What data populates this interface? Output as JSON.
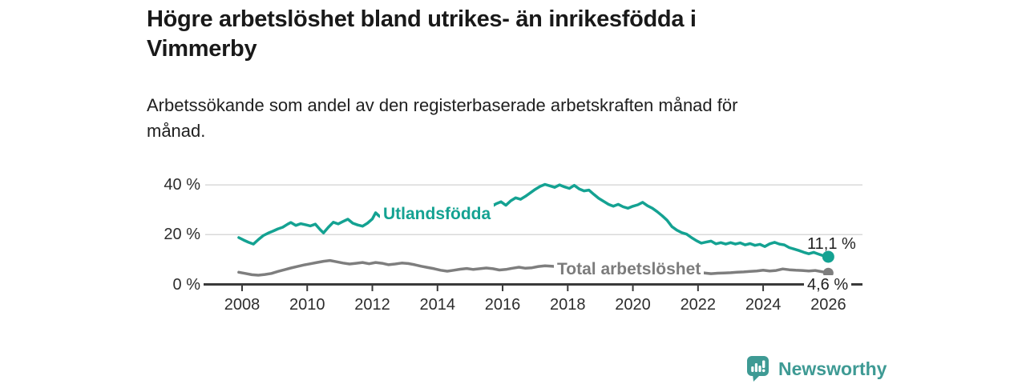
{
  "header": {
    "title_lines": [
      "Högre arbetslöshet bland utrikes- än inrikesfödda i",
      "Vimmerby"
    ],
    "subtitle_lines": [
      "Arbetssökande som andel av den registerbaserade arbetskraften månad för",
      "månad."
    ]
  },
  "footer": {
    "brand": "Newsworthy",
    "logo_icon": "bar-chart-speech-bubble-icon",
    "brand_color": "#3e9a94"
  },
  "colors": {
    "background": "#ffffff",
    "axis": "#3a3a3a",
    "grid": "#d9d9d9",
    "text": "#2d2d2d"
  },
  "chart_data": {
    "type": "line",
    "title": "Högre arbetslöshet bland utrikes- än inrikesfödda i Vimmerby",
    "subtitle": "Arbetssökande som andel av den registerbaserade arbetskraften månad för månad.",
    "xlabel": "",
    "ylabel": "",
    "xlim": [
      2007.8,
      2026.6
    ],
    "ylim": [
      0,
      45
    ],
    "grid": true,
    "legend_position": "inline-labels",
    "x_axis": {
      "ticks": [
        "2008",
        "2010",
        "2012",
        "2014",
        "2016",
        "2018",
        "2020",
        "2022",
        "2024",
        "2026"
      ]
    },
    "y_axis": {
      "ticks": [
        {
          "label": "0 %",
          "value": 0
        },
        {
          "label": "20 %",
          "value": 20
        },
        {
          "label": "40 %",
          "value": 40
        }
      ]
    },
    "series": [
      {
        "name": "Utlandsfödda",
        "color": "#14a292",
        "end_label": "11,1 %",
        "end_value": 11.1,
        "points": [
          [
            2007.9,
            18.8
          ],
          [
            2008.05,
            17.8
          ],
          [
            2008.2,
            16.9
          ],
          [
            2008.35,
            16.2
          ],
          [
            2008.5,
            18.0
          ],
          [
            2008.65,
            19.6
          ],
          [
            2008.8,
            20.6
          ],
          [
            2008.95,
            21.4
          ],
          [
            2009.1,
            22.3
          ],
          [
            2009.25,
            23.0
          ],
          [
            2009.4,
            24.2
          ],
          [
            2009.5,
            24.9
          ],
          [
            2009.65,
            23.7
          ],
          [
            2009.8,
            24.4
          ],
          [
            2009.95,
            24.0
          ],
          [
            2010.1,
            23.5
          ],
          [
            2010.25,
            24.2
          ],
          [
            2010.4,
            22.0
          ],
          [
            2010.5,
            20.7
          ],
          [
            2010.65,
            23.0
          ],
          [
            2010.8,
            25.0
          ],
          [
            2010.95,
            24.3
          ],
          [
            2011.1,
            25.3
          ],
          [
            2011.25,
            26.2
          ],
          [
            2011.4,
            24.6
          ],
          [
            2011.55,
            23.9
          ],
          [
            2011.7,
            23.4
          ],
          [
            2011.85,
            24.6
          ],
          [
            2012.0,
            26.3
          ],
          [
            2012.1,
            28.8
          ],
          [
            2012.2,
            27.6
          ],
          [
            2012.35,
            26.4
          ],
          [
            2012.5,
            25.4
          ],
          [
            2012.65,
            26.2
          ],
          [
            2012.8,
            27.0
          ],
          [
            2013.0,
            26.2
          ],
          [
            2013.2,
            26.8
          ],
          [
            2013.4,
            26.2
          ],
          [
            2013.6,
            27.2
          ],
          [
            2013.8,
            26.6
          ],
          [
            2014.0,
            27.2
          ],
          [
            2014.2,
            26.4
          ],
          [
            2014.4,
            27.0
          ],
          [
            2014.6,
            27.8
          ],
          [
            2014.8,
            27.2
          ],
          [
            2015.0,
            28.2
          ],
          [
            2015.2,
            28.8
          ],
          [
            2015.4,
            29.6
          ],
          [
            2015.6,
            30.8
          ],
          [
            2015.8,
            32.4
          ],
          [
            2015.95,
            33.2
          ],
          [
            2016.1,
            31.8
          ],
          [
            2016.25,
            33.6
          ],
          [
            2016.4,
            34.8
          ],
          [
            2016.55,
            34.2
          ],
          [
            2016.7,
            35.4
          ],
          [
            2016.85,
            36.8
          ],
          [
            2017.0,
            38.2
          ],
          [
            2017.15,
            39.4
          ],
          [
            2017.3,
            40.2
          ],
          [
            2017.45,
            39.6
          ],
          [
            2017.6,
            39.0
          ],
          [
            2017.75,
            40.0
          ],
          [
            2017.9,
            39.2
          ],
          [
            2018.05,
            38.6
          ],
          [
            2018.2,
            39.8
          ],
          [
            2018.35,
            38.4
          ],
          [
            2018.5,
            37.6
          ],
          [
            2018.65,
            37.9
          ],
          [
            2018.8,
            36.2
          ],
          [
            2018.95,
            34.6
          ],
          [
            2019.1,
            33.4
          ],
          [
            2019.25,
            32.2
          ],
          [
            2019.4,
            31.4
          ],
          [
            2019.55,
            32.2
          ],
          [
            2019.7,
            31.2
          ],
          [
            2019.85,
            30.6
          ],
          [
            2020.0,
            31.4
          ],
          [
            2020.15,
            32.0
          ],
          [
            2020.3,
            33.0
          ],
          [
            2020.45,
            31.6
          ],
          [
            2020.6,
            30.6
          ],
          [
            2020.75,
            29.2
          ],
          [
            2020.9,
            27.6
          ],
          [
            2021.05,
            25.8
          ],
          [
            2021.2,
            23.2
          ],
          [
            2021.35,
            21.8
          ],
          [
            2021.5,
            20.8
          ],
          [
            2021.65,
            20.2
          ],
          [
            2021.8,
            18.8
          ],
          [
            2021.95,
            17.6
          ],
          [
            2022.1,
            16.6
          ],
          [
            2022.25,
            17.0
          ],
          [
            2022.4,
            17.4
          ],
          [
            2022.55,
            16.3
          ],
          [
            2022.7,
            16.8
          ],
          [
            2022.85,
            16.2
          ],
          [
            2023.0,
            16.8
          ],
          [
            2023.15,
            16.2
          ],
          [
            2023.3,
            16.7
          ],
          [
            2023.45,
            15.9
          ],
          [
            2023.6,
            16.4
          ],
          [
            2023.75,
            15.7
          ],
          [
            2023.9,
            16.1
          ],
          [
            2024.05,
            15.2
          ],
          [
            2024.2,
            16.3
          ],
          [
            2024.35,
            16.9
          ],
          [
            2024.5,
            16.2
          ],
          [
            2024.65,
            15.9
          ],
          [
            2024.8,
            14.8
          ],
          [
            2024.95,
            14.2
          ],
          [
            2025.1,
            13.6
          ],
          [
            2025.25,
            12.9
          ],
          [
            2025.4,
            12.3
          ],
          [
            2025.55,
            12.9
          ],
          [
            2025.7,
            12.2
          ],
          [
            2025.85,
            11.5
          ],
          [
            2026.0,
            11.1
          ]
        ]
      },
      {
        "name": "Total arbetslöshet",
        "color": "#7e7e7e",
        "end_label": "4,6 %",
        "end_value": 4.6,
        "points": [
          [
            2007.9,
            4.9
          ],
          [
            2008.1,
            4.4
          ],
          [
            2008.3,
            3.9
          ],
          [
            2008.5,
            3.7
          ],
          [
            2008.7,
            4.0
          ],
          [
            2008.9,
            4.4
          ],
          [
            2009.1,
            5.2
          ],
          [
            2009.3,
            5.9
          ],
          [
            2009.5,
            6.6
          ],
          [
            2009.7,
            7.2
          ],
          [
            2009.9,
            7.8
          ],
          [
            2010.1,
            8.3
          ],
          [
            2010.3,
            8.8
          ],
          [
            2010.5,
            9.3
          ],
          [
            2010.7,
            9.6
          ],
          [
            2010.9,
            9.1
          ],
          [
            2011.1,
            8.6
          ],
          [
            2011.3,
            8.2
          ],
          [
            2011.5,
            8.5
          ],
          [
            2011.7,
            8.8
          ],
          [
            2011.9,
            8.3
          ],
          [
            2012.1,
            8.8
          ],
          [
            2012.3,
            8.5
          ],
          [
            2012.5,
            7.9
          ],
          [
            2012.7,
            8.2
          ],
          [
            2012.9,
            8.6
          ],
          [
            2013.1,
            8.4
          ],
          [
            2013.3,
            7.9
          ],
          [
            2013.5,
            7.3
          ],
          [
            2013.7,
            6.8
          ],
          [
            2013.9,
            6.3
          ],
          [
            2014.1,
            5.7
          ],
          [
            2014.3,
            5.3
          ],
          [
            2014.5,
            5.7
          ],
          [
            2014.7,
            6.1
          ],
          [
            2014.9,
            6.4
          ],
          [
            2015.1,
            6.0
          ],
          [
            2015.3,
            6.3
          ],
          [
            2015.5,
            6.6
          ],
          [
            2015.7,
            6.3
          ],
          [
            2015.9,
            5.8
          ],
          [
            2016.1,
            6.0
          ],
          [
            2016.3,
            6.5
          ],
          [
            2016.5,
            6.9
          ],
          [
            2016.7,
            6.5
          ],
          [
            2016.9,
            6.7
          ],
          [
            2017.1,
            7.2
          ],
          [
            2017.3,
            7.5
          ],
          [
            2017.5,
            7.3
          ],
          [
            2017.7,
            7.1
          ],
          [
            2017.9,
            7.3
          ],
          [
            2018.1,
            7.2
          ],
          [
            2018.3,
            6.9
          ],
          [
            2018.7,
            6.7
          ],
          [
            2019.0,
            6.5
          ],
          [
            2019.3,
            6.3
          ],
          [
            2019.6,
            6.5
          ],
          [
            2019.9,
            6.8
          ],
          [
            2020.2,
            7.6
          ],
          [
            2020.5,
            7.3
          ],
          [
            2020.8,
            6.9
          ],
          [
            2021.1,
            6.3
          ],
          [
            2021.4,
            5.8
          ],
          [
            2021.7,
            5.3
          ],
          [
            2022.0,
            4.9
          ],
          [
            2022.2,
            4.6
          ],
          [
            2022.4,
            4.3
          ],
          [
            2022.6,
            4.5
          ],
          [
            2022.8,
            4.6
          ],
          [
            2023.0,
            4.7
          ],
          [
            2023.2,
            4.9
          ],
          [
            2023.4,
            5.0
          ],
          [
            2023.6,
            5.2
          ],
          [
            2023.8,
            5.4
          ],
          [
            2024.0,
            5.7
          ],
          [
            2024.2,
            5.4
          ],
          [
            2024.4,
            5.6
          ],
          [
            2024.6,
            6.2
          ],
          [
            2024.8,
            5.9
          ],
          [
            2025.0,
            5.7
          ],
          [
            2025.2,
            5.6
          ],
          [
            2025.4,
            5.4
          ],
          [
            2025.6,
            5.6
          ],
          [
            2025.8,
            5.1
          ],
          [
            2026.0,
            4.6
          ]
        ]
      }
    ]
  }
}
